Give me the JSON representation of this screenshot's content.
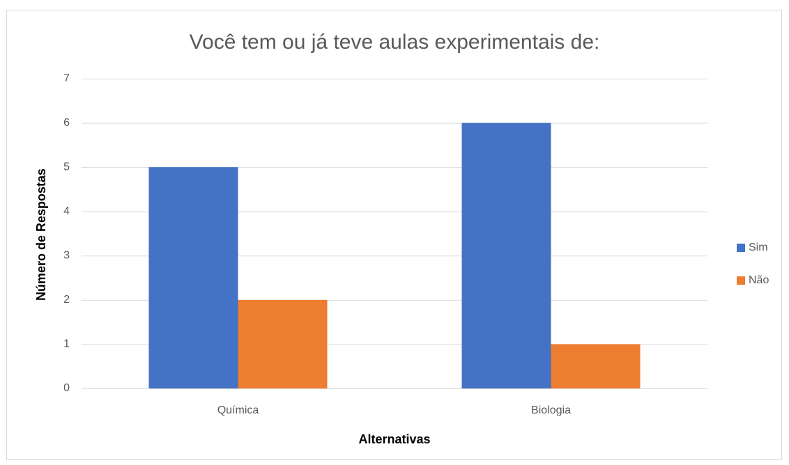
{
  "chart_data": {
    "type": "bar",
    "title": "Você tem ou já teve aulas experimentais de:",
    "xlabel": "Alternativas",
    "ylabel": "Número de Respostas",
    "categories": [
      "Química",
      "Biologia"
    ],
    "series": [
      {
        "name": "Sim",
        "color": "#4472c4",
        "values": [
          5,
          6
        ]
      },
      {
        "name": "Não",
        "color": "#ed7d31",
        "values": [
          2,
          1
        ]
      }
    ],
    "ylim": [
      0,
      7
    ],
    "yticks": [
      0,
      1,
      2,
      3,
      4,
      5,
      6,
      7
    ],
    "grid": true,
    "legend": "right"
  }
}
